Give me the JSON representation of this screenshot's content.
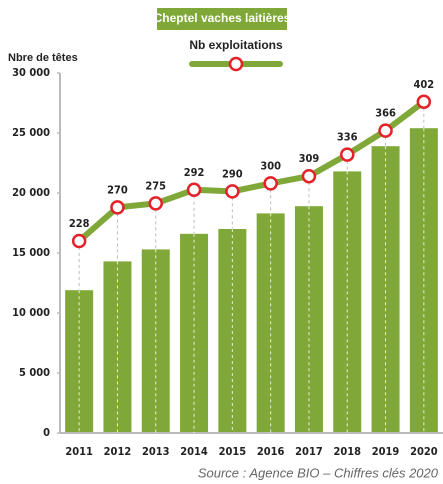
{
  "chart_data": {
    "type": "bar_line",
    "legend_title": "Cheptel vaches laitières",
    "y_label": "Nbre de têtes",
    "source": "Source : Agence BIO – Chiffres clés 2020",
    "categories": [
      "2011",
      "2012",
      "2013",
      "2014",
      "2015",
      "2016",
      "2017",
      "2018",
      "2019",
      "2020"
    ],
    "series": [
      {
        "name": "Cheptel vaches laitières",
        "type": "bar",
        "color": "#7fa838",
        "values": [
          11900,
          14300,
          15300,
          16600,
          17000,
          18300,
          18900,
          21800,
          23900,
          25400
        ]
      },
      {
        "name": "Nb exploitations",
        "type": "line",
        "axis": "y2",
        "color": "#7fa838",
        "marker_color": "#e3222a",
        "values": [
          228,
          270,
          275,
          292,
          290,
          300,
          309,
          336,
          366,
          402
        ]
      }
    ],
    "ylim": [
      0,
      30000
    ],
    "yticks": [
      0,
      {
        "value": 5000,
        "label": "5 000"
      },
      {
        "value": 10000,
        "label": "10 000"
      },
      {
        "value": 15000,
        "label": "15 000"
      },
      {
        "value": 20000,
        "label": "20 000"
      },
      {
        "value": 25000,
        "label": "25 000"
      },
      {
        "value": 30000,
        "label": "30 000"
      }
    ],
    "y2lim": [
      -12,
      438
    ]
  }
}
